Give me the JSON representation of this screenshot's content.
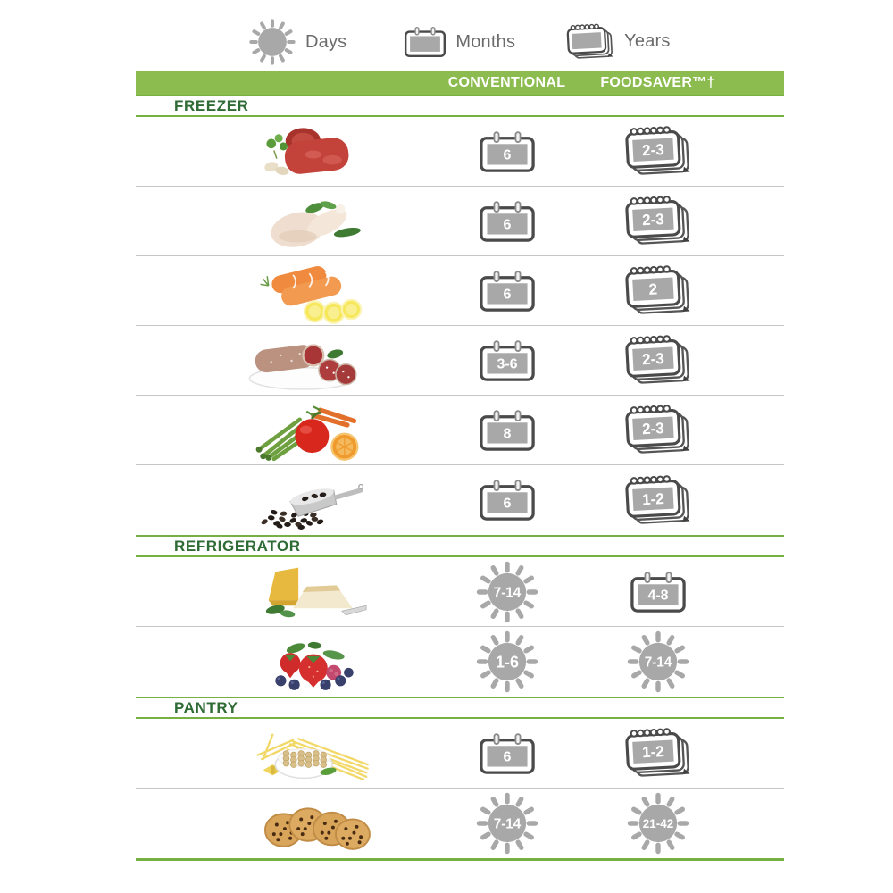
{
  "legend": {
    "items": [
      {
        "icon": "sun-icon",
        "unit": "days",
        "label": "Days"
      },
      {
        "icon": "calendar-icon",
        "unit": "months",
        "label": "Months"
      },
      {
        "icon": "calendar-stack-icon",
        "unit": "years",
        "label": "Years"
      }
    ]
  },
  "header": {
    "columns": [
      "CONVENTIONAL",
      "FOODSAVER™†"
    ]
  },
  "colors": {
    "header_green": "#8cbc4f",
    "line_green": "#76b043",
    "section_text_green": "#2f6b35",
    "icon_gray": "#a8a8a8",
    "icon_outline": "#4a4a4a",
    "row_line_gray": "#c6c6c6",
    "legend_text_gray": "#6b6b6b"
  },
  "chart_data": {
    "type": "table",
    "title": "Food storage time comparison: Conventional vs FoodSaver",
    "columns": [
      "CONVENTIONAL",
      "FOODSAVER™†"
    ],
    "sections": [
      {
        "name": "FREEZER",
        "rows": [
          {
            "food": "beef-steaks",
            "conventional": {
              "value": "6",
              "unit": "months"
            },
            "foodsaver": {
              "value": "2-3",
              "unit": "years"
            }
          },
          {
            "food": "raw-chicken",
            "conventional": {
              "value": "6",
              "unit": "months"
            },
            "foodsaver": {
              "value": "2-3",
              "unit": "years"
            }
          },
          {
            "food": "salmon-fillets",
            "conventional": {
              "value": "6",
              "unit": "months"
            },
            "foodsaver": {
              "value": "2",
              "unit": "years"
            }
          },
          {
            "food": "salami",
            "conventional": {
              "value": "3-6",
              "unit": "months"
            },
            "foodsaver": {
              "value": "2-3",
              "unit": "years"
            }
          },
          {
            "food": "vegetables",
            "conventional": {
              "value": "8",
              "unit": "months"
            },
            "foodsaver": {
              "value": "2-3",
              "unit": "years"
            }
          },
          {
            "food": "coffee-beans",
            "conventional": {
              "value": "6",
              "unit": "months"
            },
            "foodsaver": {
              "value": "1-2",
              "unit": "years"
            }
          }
        ]
      },
      {
        "name": "REFRIGERATOR",
        "rows": [
          {
            "food": "cheese",
            "conventional": {
              "value": "7-14",
              "unit": "days"
            },
            "foodsaver": {
              "value": "4-8",
              "unit": "months"
            }
          },
          {
            "food": "berries",
            "conventional": {
              "value": "1-6",
              "unit": "days"
            },
            "foodsaver": {
              "value": "7-14",
              "unit": "days"
            }
          }
        ]
      },
      {
        "name": "PANTRY",
        "rows": [
          {
            "food": "pasta-and-legumes",
            "conventional": {
              "value": "6",
              "unit": "months"
            },
            "foodsaver": {
              "value": "1-2",
              "unit": "years"
            }
          },
          {
            "food": "cookies",
            "conventional": {
              "value": "7-14",
              "unit": "days"
            },
            "foodsaver": {
              "value": "21-42",
              "unit": "days"
            }
          }
        ]
      }
    ]
  }
}
